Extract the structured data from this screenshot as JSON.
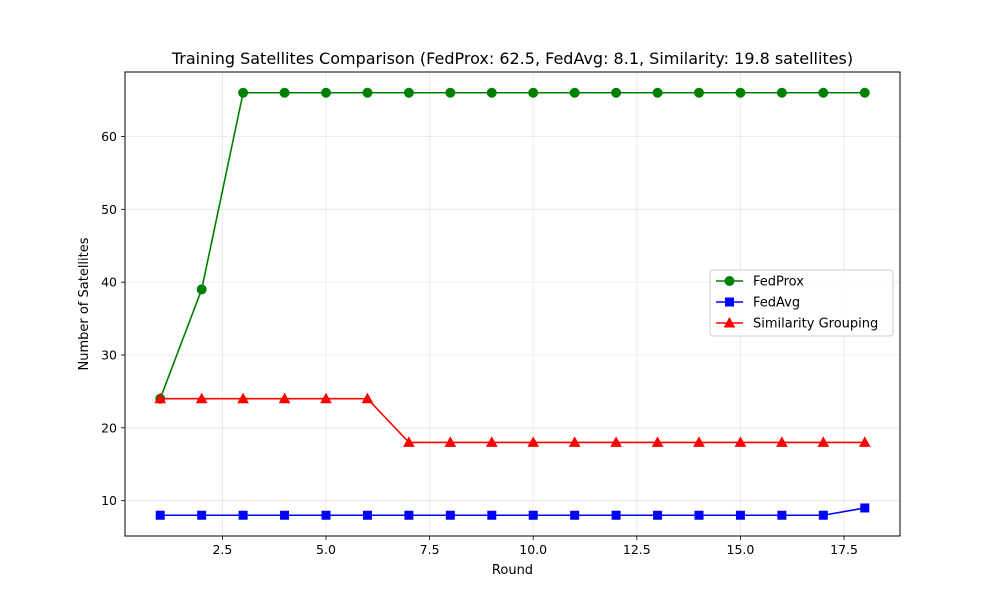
{
  "chart_data": {
    "type": "line",
    "title": "Training Satellites Comparison (FedProx: 62.5, FedAvg: 8.1, Similarity: 19.8 satellites)",
    "xlabel": "Round",
    "ylabel": "Number of Satellites",
    "xlim": [
      0.15,
      18.85
    ],
    "ylim": [
      5.15,
      68.85
    ],
    "xticks": [
      2.5,
      5.0,
      7.5,
      10.0,
      12.5,
      15.0,
      17.5
    ],
    "xtick_labels": [
      "2.5",
      "5.0",
      "7.5",
      "10.0",
      "12.5",
      "15.0",
      "17.5"
    ],
    "yticks": [
      10,
      20,
      30,
      40,
      50,
      60
    ],
    "ytick_labels": [
      "10",
      "20",
      "30",
      "40",
      "50",
      "60"
    ],
    "grid": true,
    "legend_position": "center-right",
    "x": [
      1,
      2,
      3,
      4,
      5,
      6,
      7,
      8,
      9,
      10,
      11,
      12,
      13,
      14,
      15,
      16,
      17,
      18
    ],
    "series": [
      {
        "name": "FedProx",
        "color": "#008000",
        "marker": "circle",
        "values": [
          24,
          39,
          66,
          66,
          66,
          66,
          66,
          66,
          66,
          66,
          66,
          66,
          66,
          66,
          66,
          66,
          66,
          66
        ]
      },
      {
        "name": "FedAvg",
        "color": "#0000ff",
        "marker": "square",
        "values": [
          8,
          8,
          8,
          8,
          8,
          8,
          8,
          8,
          8,
          8,
          8,
          8,
          8,
          8,
          8,
          8,
          8,
          9
        ]
      },
      {
        "name": "Similarity Grouping",
        "color": "#ff0000",
        "marker": "triangle",
        "values": [
          24,
          24,
          24,
          24,
          24,
          24,
          18,
          18,
          18,
          18,
          18,
          18,
          18,
          18,
          18,
          18,
          18,
          18
        ]
      }
    ]
  }
}
